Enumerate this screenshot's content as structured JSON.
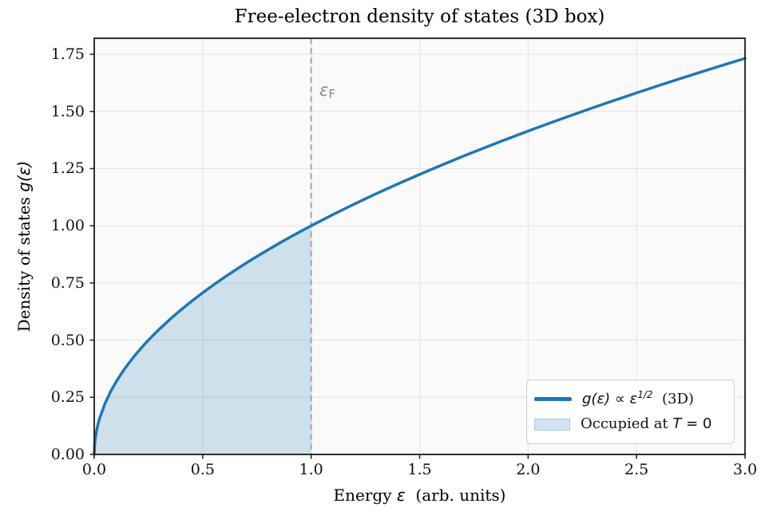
{
  "chart_data": {
    "type": "line",
    "title": "Free-electron density of states (3D box)",
    "xlabel": "Energy ε  (arb. units)",
    "ylabel": "Density of states g(ε)",
    "xlabel_parts": {
      "pre": "Energy ",
      "math": "ε",
      "post": "  (arb. units)"
    },
    "ylabel_parts": {
      "pre": "Density of states ",
      "math": "g(ε)"
    },
    "xlim": [
      0,
      3
    ],
    "ylim": [
      0,
      1.82
    ],
    "x_ticks": [
      0,
      0.5,
      1.0,
      1.5,
      2.0,
      2.5,
      3.0
    ],
    "x_tick_labels": [
      "0.0",
      "0.5",
      "1.0",
      "1.5",
      "2.0",
      "2.5",
      "3.0"
    ],
    "y_ticks": [
      0,
      0.25,
      0.5,
      0.75,
      1.0,
      1.25,
      1.5,
      1.75
    ],
    "y_tick_labels": [
      "0.00",
      "0.25",
      "0.50",
      "0.75",
      "1.00",
      "1.25",
      "1.50",
      "1.75"
    ],
    "grid": true,
    "legend_position": "lower right",
    "series": [
      {
        "name": "g(ε) ∝ ε^(1/2)  (3D)",
        "formula": "g(ε) = sqrt(ε)",
        "color": "#1f77b4",
        "x": [
          0,
          0.002,
          0.005,
          0.01,
          0.015,
          0.02,
          0.025,
          0.05,
          0.075,
          0.1,
          0.125,
          0.15,
          0.175,
          0.2,
          0.225,
          0.25,
          0.275,
          0.3,
          0.35,
          0.4,
          0.45,
          0.5,
          0.55,
          0.6,
          0.65,
          0.7,
          0.75,
          0.8,
          0.85,
          0.9,
          0.95,
          1,
          1.1,
          1.2,
          1.3,
          1.4,
          1.5,
          1.6,
          1.7,
          1.8,
          1.9,
          2,
          2.1,
          2.2,
          2.3,
          2.4,
          2.5,
          2.6,
          2.7,
          2.8,
          2.9,
          3
        ],
        "y": [
          0,
          0.0447,
          0.0707,
          0.1,
          0.1225,
          0.1414,
          0.1581,
          0.2236,
          0.2739,
          0.3162,
          0.3536,
          0.3873,
          0.4183,
          0.4472,
          0.4743,
          0.5,
          0.5244,
          0.5477,
          0.5916,
          0.6325,
          0.6708,
          0.7071,
          0.7416,
          0.7746,
          0.8062,
          0.8367,
          0.866,
          0.8944,
          0.922,
          0.9487,
          0.9747,
          1,
          1.0488,
          1.0954,
          1.1402,
          1.1832,
          1.2247,
          1.2649,
          1.3038,
          1.3416,
          1.3784,
          1.4142,
          1.4491,
          1.4832,
          1.5166,
          1.5492,
          1.5811,
          1.6125,
          1.6432,
          1.6733,
          1.7029,
          1.7321
        ]
      }
    ],
    "fill_region": {
      "name": "Occupied at T = 0",
      "x_range": [
        0,
        1
      ],
      "color": "rgba(31,119,180,0.2)"
    },
    "fermi_line": {
      "x": 1.0,
      "label": "εF",
      "style": "dashed",
      "color": "#ababab"
    }
  },
  "annotation": {
    "symbol": "ε",
    "sub": "F"
  },
  "legend": {
    "row1": {
      "math": "g(ε) ∝ ε",
      "sup": "1/2",
      "rest": "  (3D)"
    },
    "row2": {
      "pre": "Occupied at ",
      "var": "T",
      "post": " = 0"
    }
  },
  "colors": {
    "line": "#1f77b4",
    "fill": "rgba(31,119,180,0.2)",
    "fermi": "#ababab",
    "annotation": "#8c8c8c",
    "plot_bg": "#fafafa",
    "grid": "#e5e5e5",
    "spine": "#1a1a1a",
    "legend_edge": "#cfcfcf",
    "legend_patch_edge": "#a9c8e1"
  }
}
